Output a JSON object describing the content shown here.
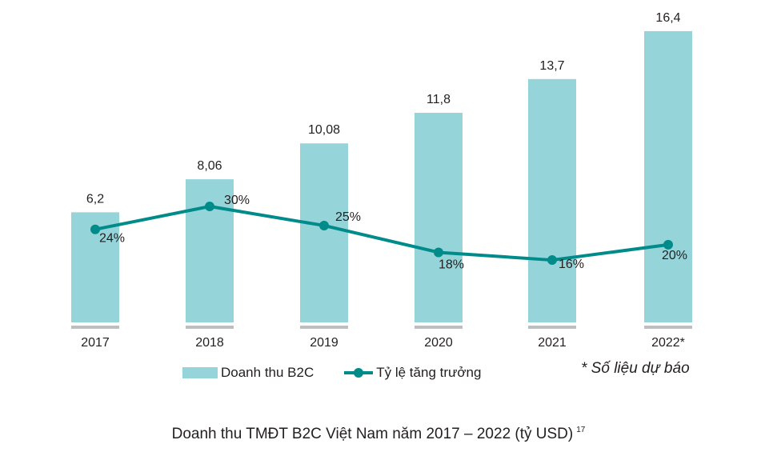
{
  "chart_data": {
    "type": "bar+line",
    "categories": [
      "2017",
      "2018",
      "2019",
      "2020",
      "2021",
      "2022*"
    ],
    "series": [
      {
        "name": "Doanh thu B2C",
        "type": "bar",
        "values": [
          6.2,
          8.06,
          10.08,
          11.8,
          13.7,
          16.4
        ],
        "labels": [
          "6,2",
          "8,06",
          "10,08",
          "11,8",
          "13,7",
          "16,4"
        ],
        "color": "#95d5da"
      },
      {
        "name": "Tỷ lệ tăng trưởng",
        "type": "line",
        "values": [
          24,
          30,
          25,
          18,
          16,
          20
        ],
        "labels": [
          "24%",
          "30%",
          "25%",
          "18%",
          "16%",
          "20%"
        ],
        "unit": "%",
        "color": "#008b8b"
      }
    ],
    "axis_color": "#bcbec0",
    "grid": false,
    "legend_placement": "bottom"
  },
  "note": "* Số liệu dự báo",
  "caption": "Doanh thu TMĐT B2C Việt Nam năm 2017 – 2022 (tỷ USD)",
  "caption_ref": "17"
}
